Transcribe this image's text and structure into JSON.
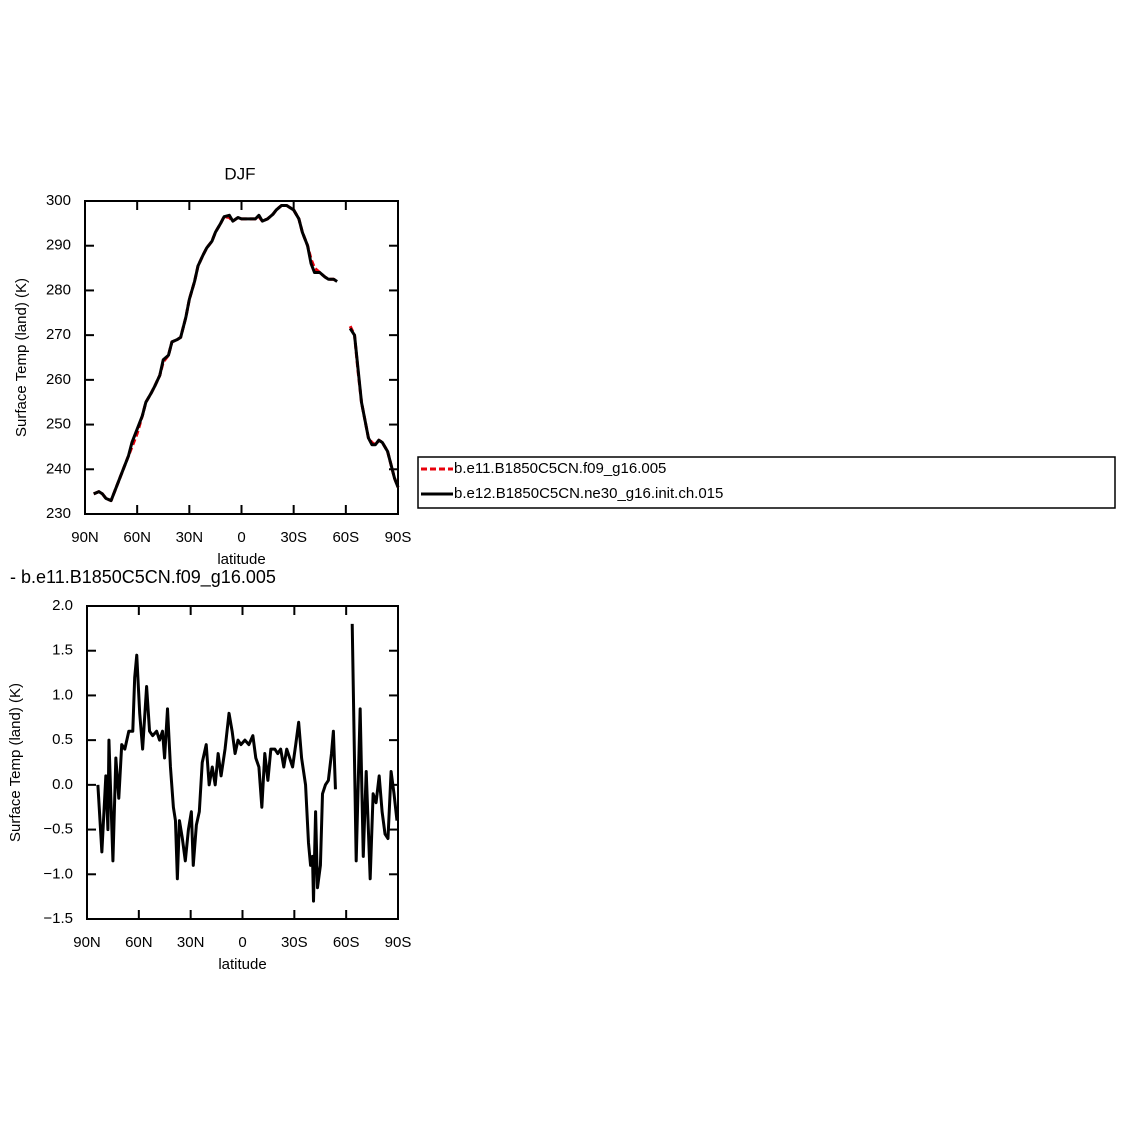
{
  "chart_data": [
    {
      "type": "line",
      "title": "DJF",
      "xlabel": "latitude",
      "ylabel": "Surface Temp (land) (K)",
      "x": [
        85,
        82,
        80,
        78,
        75,
        72,
        70,
        67,
        65,
        63,
        60,
        57,
        55,
        52,
        50,
        47,
        45,
        42,
        40,
        37,
        35,
        32,
        30,
        27,
        25,
        22,
        20,
        17,
        15,
        12,
        10,
        7,
        5,
        2,
        0,
        -3,
        -5,
        -8,
        -10,
        -12,
        -15,
        -18,
        -20,
        -23,
        -26,
        -28,
        -30,
        -33,
        -35,
        -38,
        -40,
        -42,
        -45,
        -48,
        -50,
        -53,
        -55,
        -59,
        -62.5,
        -65,
        -67,
        -69,
        -71,
        -73,
        -75,
        -77,
        -79,
        -81,
        -84,
        -86,
        -88,
        -90
      ],
      "series": [
        {
          "name": "b.e11.B1850C5CN.f09_g16.005",
          "color": "#e8000b",
          "linestyle": "dashed",
          "values": [
            234.5,
            235,
            234.5,
            233.5,
            233,
            236,
            238,
            241,
            243,
            245,
            248,
            252,
            255,
            257,
            258.5,
            261,
            264,
            265.5,
            268.5,
            269,
            269.5,
            274,
            278,
            282,
            285.5,
            288,
            289.5,
            291,
            293,
            295,
            296.5,
            296.3,
            295.5,
            296.3,
            296,
            296,
            296,
            296,
            296.5,
            295.5,
            296,
            297,
            298,
            299,
            299,
            298.5,
            298,
            296,
            293,
            290,
            287,
            285,
            284,
            283,
            282.5,
            282.5,
            282,
            null,
            272,
            270,
            262,
            255,
            251,
            247,
            246,
            245.5,
            246.5,
            246,
            244,
            241,
            238,
            236
          ]
        },
        {
          "name": "b.e12.B1850C5CN.ne30_g16.init.ch.015",
          "color": "#000000",
          "linestyle": "solid",
          "values": [
            234.5,
            235,
            234.5,
            233.5,
            233,
            236,
            238,
            241,
            243,
            246,
            249,
            252,
            255,
            257,
            258.5,
            261,
            264.5,
            265.5,
            268.5,
            269,
            269.5,
            274,
            278,
            282,
            285.5,
            288,
            289.5,
            291,
            293,
            295,
            296.5,
            296.8,
            295.5,
            296.3,
            296,
            296,
            296,
            296,
            296.8,
            295.5,
            296,
            297,
            298,
            299,
            299,
            298.5,
            298,
            296,
            293,
            290,
            286,
            284,
            284,
            283,
            282.5,
            282.5,
            282,
            null,
            271.5,
            270,
            262.5,
            255,
            251,
            247,
            245.5,
            245.5,
            246.5,
            246,
            244,
            241,
            238,
            236
          ]
        }
      ],
      "xlim": [
        90,
        -90
      ],
      "ylim": [
        230,
        300
      ],
      "xticks": [
        {
          "value": 90,
          "label": "90N"
        },
        {
          "value": 60,
          "label": "60N"
        },
        {
          "value": 30,
          "label": "30N"
        },
        0,
        {
          "value": -30,
          "label": "30S"
        },
        {
          "value": -60,
          "label": "60S"
        },
        {
          "value": -90,
          "label": "90S"
        }
      ],
      "yticks": [
        230,
        240,
        250,
        260,
        270,
        280,
        290,
        300
      ],
      "legend": "right"
    },
    {
      "type": "line",
      "title": "- b.e11.B1850C5CN.f09_g16.005",
      "xlabel": "latitude",
      "ylabel": "Surface Temp (land) (K)",
      "x": [
        83.7,
        81.4,
        79.1,
        77.9,
        77.3,
        75.0,
        73.3,
        71.6,
        69.9,
        68.1,
        65.8,
        63.5,
        62.4,
        61.2,
        59.5,
        57.8,
        55.5,
        53.8,
        52.0,
        49.7,
        48.0,
        46.3,
        45.1,
        43.4,
        41.7,
        40.0,
        38.8,
        37.7,
        36.5,
        34.8,
        33.1,
        31.3,
        29.6,
        28.5,
        26.7,
        25.0,
        23.3,
        21.0,
        19.3,
        17.5,
        15.8,
        14.1,
        12.4,
        10.1,
        7.8,
        6.0,
        4.3,
        2.6,
        0.9,
        -1.4,
        -3.7,
        -6.0,
        -7.7,
        -9.5,
        -11.2,
        -12.9,
        -14.7,
        -16.4,
        -18.7,
        -20.4,
        -22.1,
        -23.9,
        -25.6,
        -27.3,
        -29.0,
        -30.8,
        -32.5,
        -34.2,
        -36.5,
        -38.2,
        -39.4,
        -40.5,
        -41.1,
        -42.3,
        -43.4,
        -45.1,
        -46.3,
        -48.0,
        -49.7,
        -51.5,
        -52.6,
        -53.8,
        -58.7,
        -63.5,
        -65.8,
        -68.1,
        -69.9,
        -71.6,
        -73.9,
        -75.6,
        -77.3,
        -79.1,
        -80.8,
        -82.5,
        -84.2,
        -86.0,
        -87.7,
        -89.4
      ],
      "series": [
        {
          "color": "#000000",
          "linestyle": "solid",
          "values": [
            0.0,
            -0.75,
            0.1,
            -0.5,
            0.5,
            -0.85,
            0.3,
            -0.15,
            0.45,
            0.4,
            0.6,
            0.6,
            1.2,
            1.45,
            0.8,
            0.4,
            1.1,
            0.6,
            0.55,
            0.6,
            0.5,
            0.6,
            0.3,
            0.85,
            0.2,
            -0.25,
            -0.4,
            -1.05,
            -0.4,
            -0.6,
            -0.85,
            -0.5,
            -0.3,
            -0.9,
            -0.45,
            -0.3,
            0.25,
            0.45,
            0.0,
            0.2,
            0.0,
            0.35,
            0.1,
            0.4,
            0.8,
            0.6,
            0.35,
            0.5,
            0.45,
            0.5,
            0.45,
            0.55,
            0.3,
            0.2,
            -0.25,
            0.35,
            0.05,
            0.4,
            0.4,
            0.35,
            0.4,
            0.2,
            0.4,
            0.3,
            0.2,
            0.45,
            0.7,
            0.3,
            0.0,
            -0.65,
            -0.9,
            -0.8,
            -1.3,
            -0.3,
            -1.15,
            -0.9,
            -0.1,
            0.0,
            0.05,
            0.35,
            0.6,
            -0.05,
            null,
            1.8,
            -0.85,
            0.85,
            -0.8,
            0.15,
            -1.05,
            -0.1,
            -0.2,
            0.1,
            -0.3,
            -0.55,
            -0.6,
            0.15,
            -0.1,
            -0.4
          ]
        }
      ],
      "xlim": [
        90,
        -90
      ],
      "ylim": [
        -1.5,
        2.0
      ],
      "xticks": [
        {
          "value": 90,
          "label": "90N"
        },
        {
          "value": 60,
          "label": "60N"
        },
        {
          "value": 30,
          "label": "30N"
        },
        0,
        {
          "value": -30,
          "label": "30S"
        },
        {
          "value": -60,
          "label": "60S"
        },
        {
          "value": -90,
          "label": "90S"
        }
      ],
      "yticks": [
        {
          "value": -1.5,
          "label": "−1.5"
        },
        {
          "value": -1.0,
          "label": "−1.0"
        },
        {
          "value": -0.5,
          "label": "−0.5"
        },
        {
          "value": 0,
          "label": "0.0"
        },
        {
          "value": 0.5,
          "label": "0.5"
        },
        {
          "value": 1.0,
          "label": "1.0"
        },
        {
          "value": 1.5,
          "label": "1.5"
        },
        {
          "value": 2.0,
          "label": "2.0"
        }
      ]
    }
  ]
}
